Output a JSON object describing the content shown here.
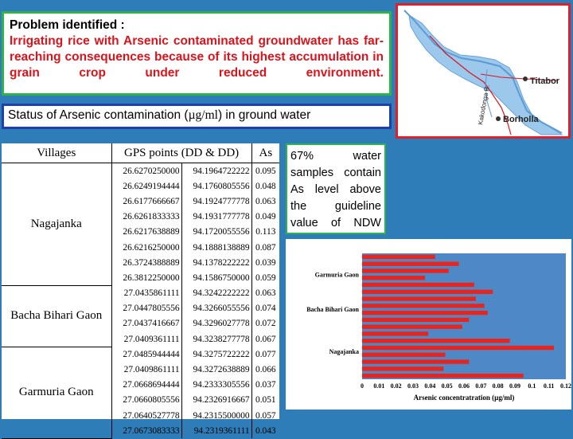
{
  "problem": {
    "title": "Problem identified :",
    "text": "Irrigating rice with Arsenic contaminated groundwater has far-reaching consequences because of its highest accumulation in grain crop under reduced environment."
  },
  "status": {
    "prefix": "Status of Arsenic contamination (",
    "unit": "µg/ml",
    "suffix": ") in ground water"
  },
  "map": {
    "labels": [
      "Titabor",
      "Kakodonga R.",
      "Borholla"
    ]
  },
  "table": {
    "headers": {
      "villages": "Villages",
      "gps": "GPS points (DD & DD)",
      "as": "As"
    },
    "groups": [
      {
        "village": "Nagajanka",
        "rows": [
          {
            "lat": "26.6270250000",
            "lon": "94.1964722222",
            "as": "0.095"
          },
          {
            "lat": "26.6249194444",
            "lon": "94.1760805556",
            "as": "0.048"
          },
          {
            "lat": "26.6177666667",
            "lon": "94.1924777778",
            "as": "0.063"
          },
          {
            "lat": "26.6261833333",
            "lon": "94.1931777778",
            "as": "0.049"
          },
          {
            "lat": "26.6217638889",
            "lon": "94.1720055556",
            "as": "0.113"
          },
          {
            "lat": "26.6216250000",
            "lon": "94.1888138889",
            "as": "0.087"
          },
          {
            "lat": "26.3724388889",
            "lon": "94.1378222222",
            "as": "0.039"
          },
          {
            "lat": "26.3812250000",
            "lon": "94.1586750000",
            "as": "0.059"
          }
        ]
      },
      {
        "village": "Bacha Bihari Gaon",
        "rows": [
          {
            "lat": "27.0435861111",
            "lon": "94.3242222222",
            "as": "0.063"
          },
          {
            "lat": "27.0447805556",
            "lon": "94.3266055556",
            "as": "0.074"
          },
          {
            "lat": "27.0437416667",
            "lon": "94.3296027778",
            "as": "0.072"
          },
          {
            "lat": "27.0409361111",
            "lon": "94.3238277778",
            "as": "0.067"
          }
        ]
      },
      {
        "village": "Garmuria Gaon",
        "rows": [
          {
            "lat": "27.0485944444",
            "lon": "94.3275722222",
            "as": "0.077"
          },
          {
            "lat": "27.0409861111",
            "lon": "94.3272638889",
            "as": "0.066"
          },
          {
            "lat": "27.0668694444",
            "lon": "94.2333305556",
            "as": "0.037"
          },
          {
            "lat": "27.0660805556",
            "lon": "94.2326916667",
            "as": "0.051"
          },
          {
            "lat": "27.0640527778",
            "lon": "94.2315500000",
            "as": "0.057"
          },
          {
            "lat": "27.0673083333",
            "lon": "94.2319361111",
            "as": "0.043"
          }
        ]
      }
    ]
  },
  "note": "67% water samples contain As level above the guideline value of NDW",
  "colors": {
    "background": "#2f7db8",
    "problem_text": "#d9141c",
    "bar": "#e8241c",
    "plot_bg": "#4f88c6",
    "map_water": "#9cc8ec"
  },
  "chart_data": {
    "type": "bar",
    "orientation": "horizontal",
    "xlabel": "Arsenic concentratration (µg/ml)",
    "xlim": [
      0,
      0.12
    ],
    "xticks": [
      "0",
      "0.01",
      "0.02",
      "0.03",
      "0.04",
      "0.05",
      "0.06",
      "0.07",
      "0.08",
      "0.09",
      "0.1",
      "0.11",
      "0.12"
    ],
    "group_labels": [
      "Garmuria Gaon",
      "Bacha Bihari Gaon",
      "Nagajanka"
    ],
    "groups": [
      {
        "name": "Garmuria Gaon",
        "values": [
          0.043,
          0.057,
          0.051,
          0.037,
          0.066,
          0.077
        ]
      },
      {
        "name": "Bacha Bihari Gaon",
        "values": [
          0.067,
          0.072,
          0.074,
          0.063
        ]
      },
      {
        "name": "Nagajanka",
        "values": [
          0.059,
          0.039,
          0.087,
          0.113,
          0.049,
          0.063,
          0.048,
          0.095
        ]
      }
    ]
  }
}
